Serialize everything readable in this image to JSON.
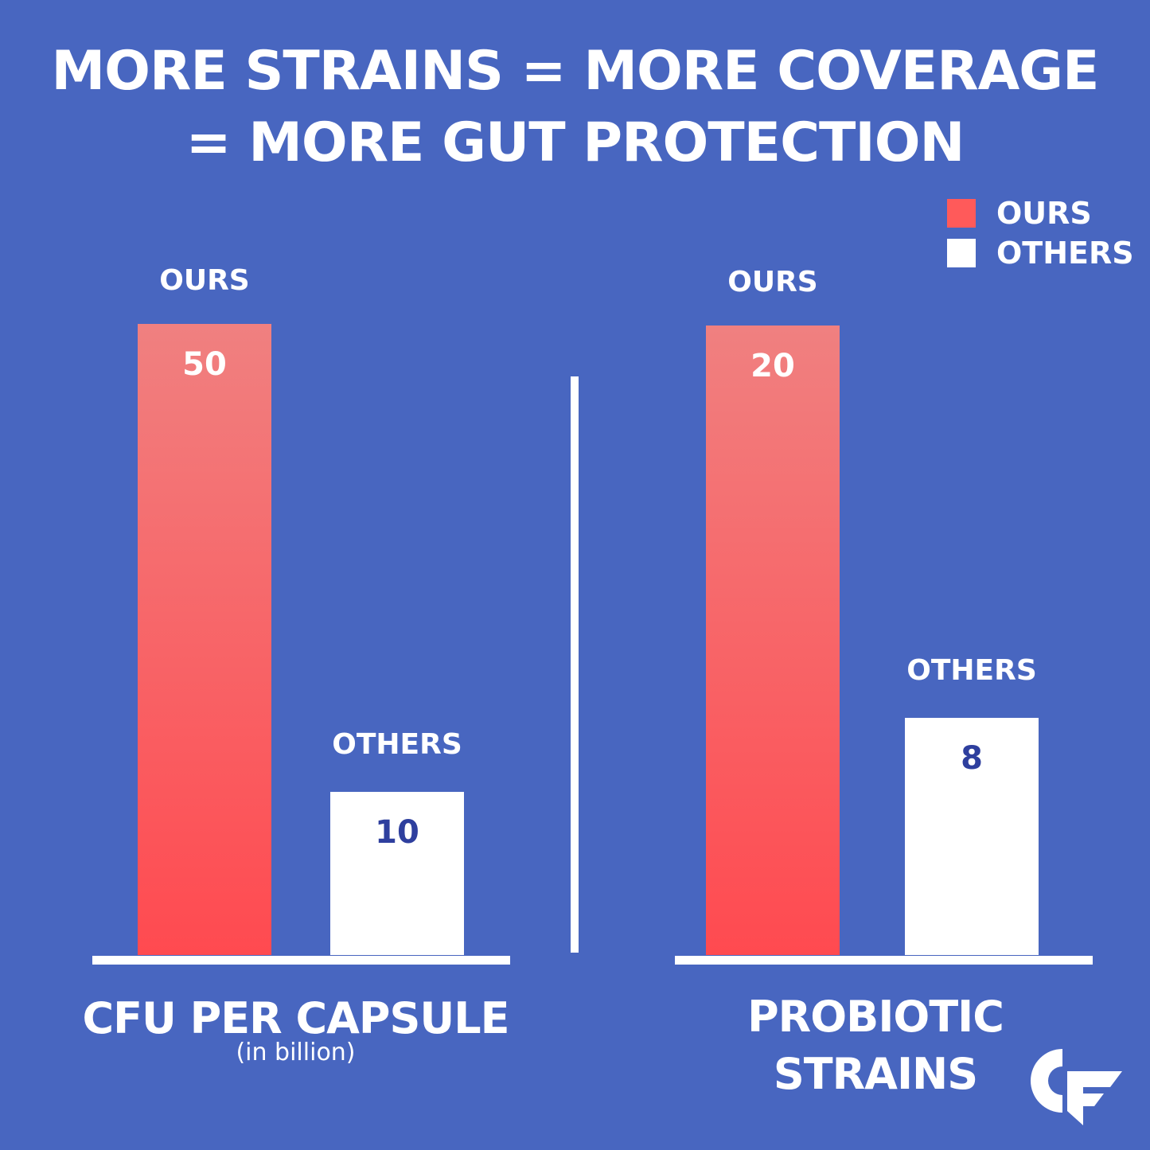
{
  "title": {
    "line1": "MORE STRAINS = MORE COVERAGE",
    "line2": "= MORE GUT PROTECTION"
  },
  "legend": [
    {
      "label": "OURS",
      "color": "#ff5a5a"
    },
    {
      "label": "OTHERS",
      "color": "#ffffff"
    }
  ],
  "chart_data": [
    {
      "type": "bar",
      "title": "CFU PER CAPSULE",
      "subtitle": "(in billion)",
      "categories": [
        "OURS",
        "OTHERS"
      ],
      "values": [
        50,
        10
      ],
      "data_labels": [
        "50",
        "10"
      ]
    },
    {
      "type": "bar",
      "title": "PROBIOTIC STRAINS",
      "title_lines": [
        "PROBIOTIC",
        "STRAINS"
      ],
      "categories": [
        "OURS",
        "OTHERS"
      ],
      "values": [
        20,
        8
      ],
      "data_labels": [
        "20",
        "8"
      ]
    }
  ],
  "logo": "CF"
}
